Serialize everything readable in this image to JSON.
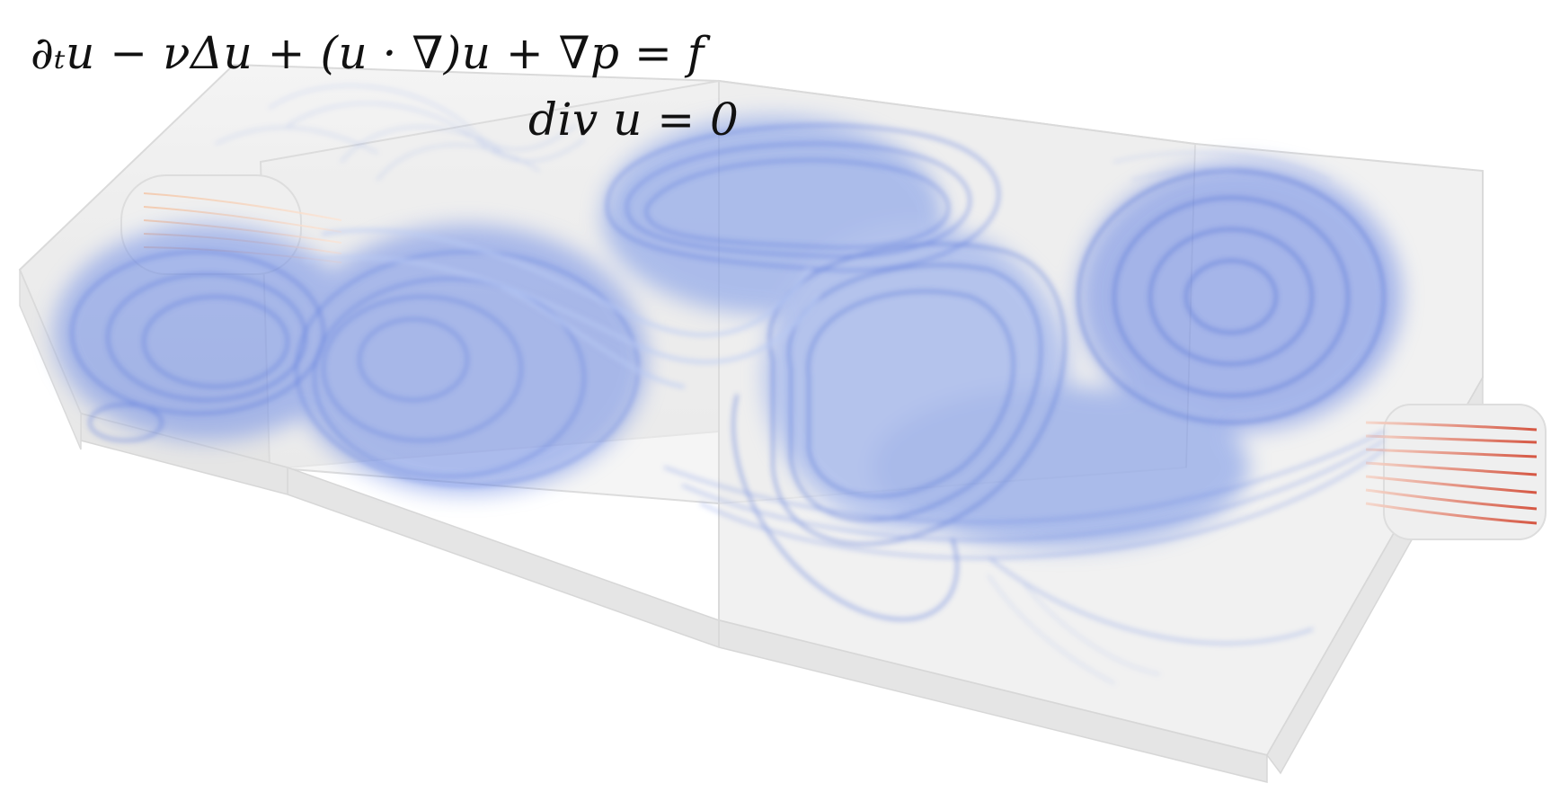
{
  "equations": {
    "momentum": "∂ₜu − νΔu + (u · ∇)u + ∇p = f",
    "continuity": "div u = 0"
  },
  "colors": {
    "background": "#ffffff",
    "box": "#e6e6e6",
    "stream_slow": "#5a78e0",
    "stream_mid": "#a9c0f2",
    "stream_inlet": "#f0c9b0",
    "stream_outlet": "#d9624a"
  }
}
